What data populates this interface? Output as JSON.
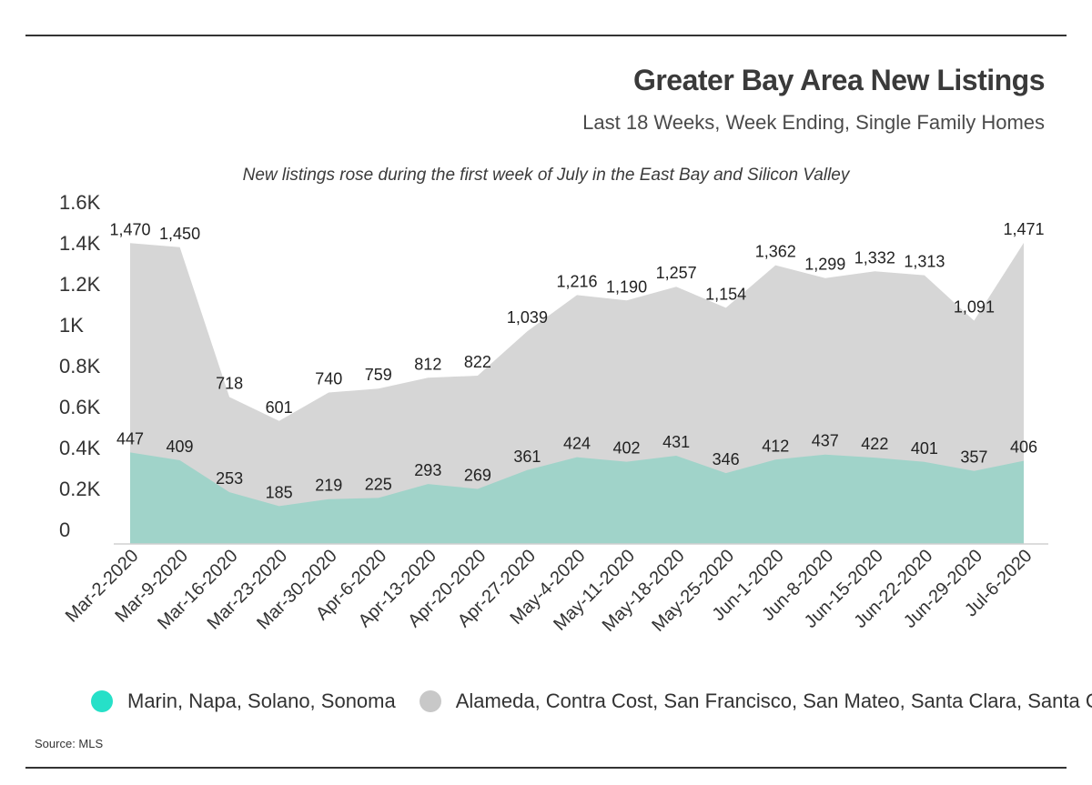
{
  "header": {
    "title": "Greater Bay Area New Listings",
    "subtitle": "Last 18 Weeks, Week Ending, Single Family Homes",
    "annotation": "New listings rose during the first week of July in the East Bay and Silicon Valley"
  },
  "footer": {
    "source": "Source: MLS"
  },
  "chart_data": {
    "type": "area",
    "title": "Greater Bay Area New Listings",
    "subtitle": "Last 18 Weeks, Week Ending, Single Family Homes",
    "categories": [
      "Mar-2-2020",
      "Mar-9-2020",
      "Mar-16-2020",
      "Mar-23-2020",
      "Mar-30-2020",
      "Apr-6-2020",
      "Apr-13-2020",
      "Apr-20-2020",
      "Apr-27-2020",
      "May-4-2020",
      "May-11-2020",
      "May-18-2020",
      "May-25-2020",
      "Jun-1-2020",
      "Jun-8-2020",
      "Jun-15-2020",
      "Jun-22-2020",
      "Jun-29-2020",
      "Jul-6-2020"
    ],
    "series": [
      {
        "name": "Alameda, Contra Cost, San Francisco, San Mateo, Santa Clara, Santa Cruz",
        "color": "#d6d6d6",
        "values": [
          1470,
          1450,
          718,
          601,
          740,
          759,
          812,
          822,
          1039,
          1216,
          1190,
          1257,
          1154,
          1362,
          1299,
          1332,
          1313,
          1091,
          1471
        ],
        "labels": [
          "1,470",
          "1,450",
          "718",
          "601",
          "740",
          "759",
          "812",
          "822",
          "1,039",
          "1,216",
          "1,190",
          "1,257",
          "1,154",
          "1,362",
          "1,299",
          "1,332",
          "1,313",
          "1,091",
          "1,471"
        ]
      },
      {
        "name": "Marin, Napa, Solano, Sonoma",
        "color": "#a0d3c9",
        "legend_color": "#26e0c8",
        "values": [
          447,
          409,
          253,
          185,
          219,
          225,
          293,
          269,
          361,
          424,
          402,
          431,
          346,
          412,
          437,
          422,
          401,
          357,
          406
        ],
        "labels": [
          "447",
          "409",
          "253",
          "185",
          "219",
          "225",
          "293",
          "269",
          "361",
          "424",
          "402",
          "431",
          "346",
          "412",
          "437",
          "422",
          "401",
          "357",
          "406"
        ]
      }
    ],
    "y_ticks": [
      {
        "value": 0,
        "label": "0"
      },
      {
        "value": 200,
        "label": "0.2K"
      },
      {
        "value": 400,
        "label": "0.4K"
      },
      {
        "value": 600,
        "label": "0.6K"
      },
      {
        "value": 800,
        "label": "0.8K"
      },
      {
        "value": 1000,
        "label": "1K"
      },
      {
        "value": 1200,
        "label": "1.2K"
      },
      {
        "value": 1400,
        "label": "1.4K"
      },
      {
        "value": 1600,
        "label": "1.6K"
      }
    ],
    "ylim": [
      0,
      1600
    ],
    "grid": false,
    "legend_position": "bottom"
  }
}
